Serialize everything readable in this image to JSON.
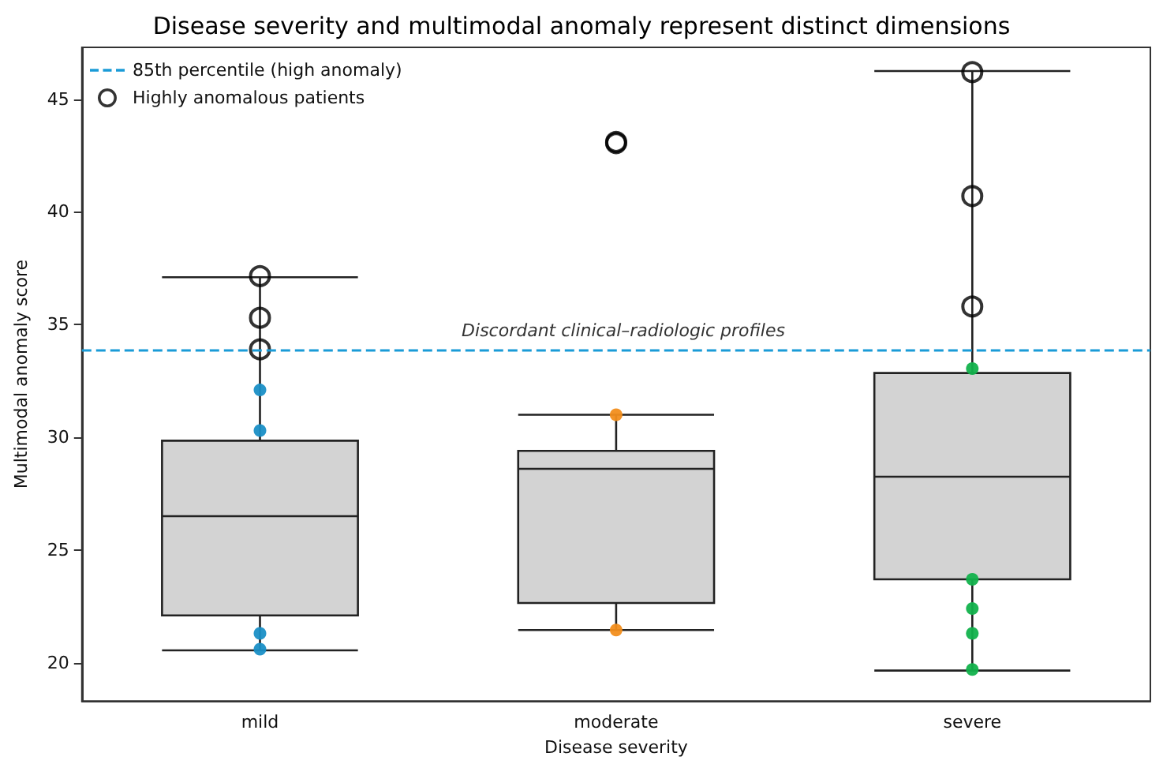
{
  "chart_data": {
    "type": "box",
    "title": "Disease severity and multimodal anomaly represent distinct dimensions",
    "xlabel": "Disease severity",
    "ylabel": "Multimodal anomaly score",
    "categories": [
      "mild",
      "moderate",
      "severe"
    ],
    "ylim": [
      18.3,
      47.3
    ],
    "yticks": [
      20,
      25,
      30,
      35,
      40,
      45
    ],
    "grid": false,
    "legend": "top left",
    "annotations": [
      "Discordant clinical–radiologic profiles"
    ],
    "ref_lines": [
      {
        "axis": "y",
        "value": 33.9,
        "label": "85th percentile (high anomaly)",
        "color": "#1a9bd7",
        "line_style": "dashed"
      }
    ],
    "series": [
      {
        "color": "#d3d3d3",
        "boxes": [
          {
            "low": 20.55,
            "q1": 22.1,
            "median": 26.5,
            "q3": 29.85,
            "high": 37.1
          },
          {
            "low": 21.45,
            "q1": 22.65,
            "median": 28.6,
            "q3": 29.4,
            "high": 31.0
          },
          {
            "low": 19.65,
            "q1": 23.7,
            "median": 28.25,
            "q3": 32.85,
            "high": 46.25
          }
        ]
      },
      {
        "type": "scatter",
        "color": "#1a8fc6",
        "x": [
          "mild",
          "mild",
          "mild",
          "mild"
        ],
        "values": [
          32.1,
          30.3,
          21.3,
          20.6
        ]
      },
      {
        "type": "scatter",
        "color": "#f28e1c",
        "x": [
          "moderate",
          "moderate"
        ],
        "values": [
          31.0,
          21.45
        ]
      },
      {
        "type": "scatter",
        "color": "#12b24c",
        "x": [
          "severe",
          "severe",
          "severe",
          "severe",
          "severe"
        ],
        "values": [
          33.05,
          23.7,
          22.4,
          21.3,
          19.7
        ]
      },
      {
        "type": "scatter",
        "name": "Highly anomalous patients",
        "color": "#000000",
        "x": [
          "mild",
          "mild",
          "mild",
          "moderate",
          "moderate",
          "severe",
          "severe",
          "severe"
        ],
        "values": [
          37.15,
          35.3,
          33.9,
          43.1,
          43.05,
          46.2,
          40.7,
          35.8
        ]
      }
    ]
  }
}
